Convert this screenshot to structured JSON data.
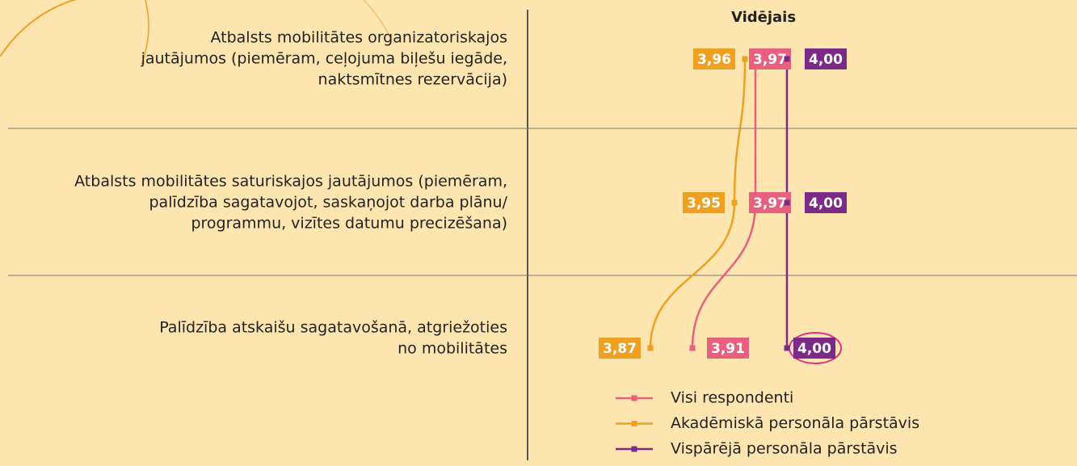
{
  "chart_data": {
    "type": "line",
    "orientation": "horizontal",
    "header": "Vidējais",
    "categories": [
      [
        "Atbalsts mobilitātes organizatoriskajos",
        "jautājumos (piemēram, ceļojuma biļešu iegāde,",
        "naktsmītnes rezervācija)"
      ],
      [
        "Atbalsts mobilitātes saturiskajos jautājumos (piemēram,",
        "palīdzība sagatavojot, saskaņojot darba plānu/",
        "programmu, vizītes datumu precizēšana)"
      ],
      [
        "Palīdzība atskaišu sagatavošanā, atgriežoties",
        "no mobilitātes"
      ]
    ],
    "series": [
      {
        "name": "Visi respondenti",
        "color": "#e8607e",
        "values": [
          3.97,
          3.97,
          3.91
        ],
        "value_labels": [
          "3,97",
          "3,97",
          "3,91"
        ]
      },
      {
        "name": "Akadēmiskā personāla pārstāvis",
        "color": "#f0a020",
        "values": [
          3.96,
          3.95,
          3.87
        ],
        "value_labels": [
          "3,96",
          "3,95",
          "3,87"
        ]
      },
      {
        "name": "Vispārējā personāla pārstāvis",
        "color": "#7b2a88",
        "values": [
          4.0,
          4.0,
          4.0
        ],
        "value_labels": [
          "4,00",
          "4,00",
          "4,00"
        ]
      }
    ],
    "xlim": [
      3.8,
      4.1
    ]
  }
}
